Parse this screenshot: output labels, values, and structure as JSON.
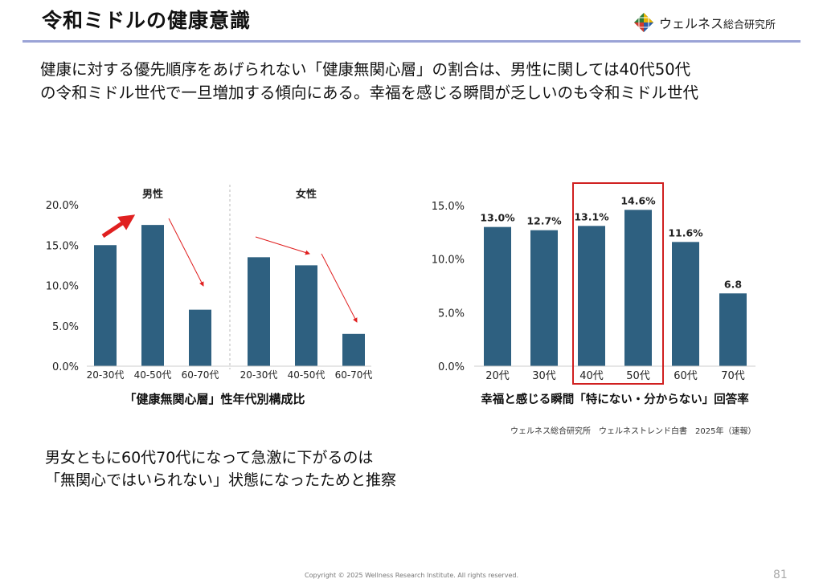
{
  "header": {
    "title": "令和ミドルの健康意識",
    "logo_text_main": "ウェルネス",
    "logo_text_sub": "総合研究所"
  },
  "lead_lines": [
    "健康に対する優先順序をあげられない「健康無関心層」の割合は、男性に関しては40代50代",
    "の令和ミドル世代で一旦増加する傾向にある。幸福を感じる瞬間が乏しいのも令和ミドル世代"
  ],
  "conclusion_lines": [
    "男女ともに60代70代になって急激に下がるのは",
    "「無関心ではいられない」状態になったためと推察"
  ],
  "source": "ウェルネス総合研究所　ウェルネストレンド白書　2025年（速報）",
  "copyright": "Copyright © 2025 Wellness Research Institute. All rights reserved.",
  "page_number": "81",
  "colors": {
    "bar": "#2e6080",
    "arrow": "#e02020",
    "highlight": "#d02020",
    "rule": "#9aa3d6"
  },
  "chart_data": [
    {
      "type": "bar",
      "title": "「健康無関心層」性年代別構成比",
      "groups": [
        "男性",
        "女性"
      ],
      "categories": [
        "20-30代",
        "40-50代",
        "60-70代",
        "20-30代",
        "40-50代",
        "60-70代"
      ],
      "values": [
        15.0,
        17.5,
        7.0,
        13.5,
        12.5,
        4.0
      ],
      "yticks": [
        "0.0%",
        "5.0%",
        "10.0%",
        "15.0%",
        "20.0%"
      ],
      "ylim": [
        0,
        20
      ]
    },
    {
      "type": "bar",
      "title": "幸福と感じる瞬間「特にない・分からない」回答率",
      "categories": [
        "20代",
        "30代",
        "40代",
        "50代",
        "60代",
        "70代"
      ],
      "values": [
        13.0,
        12.7,
        13.1,
        14.6,
        11.6,
        6.8
      ],
      "data_labels": [
        "13.0%",
        "12.7%",
        "13.1%",
        "14.6%",
        "11.6%",
        "6.8"
      ],
      "yticks": [
        "0.0%",
        "5.0%",
        "10.0%",
        "15.0%"
      ],
      "ylim": [
        0,
        15
      ],
      "highlight": [
        "40代",
        "50代"
      ]
    }
  ]
}
